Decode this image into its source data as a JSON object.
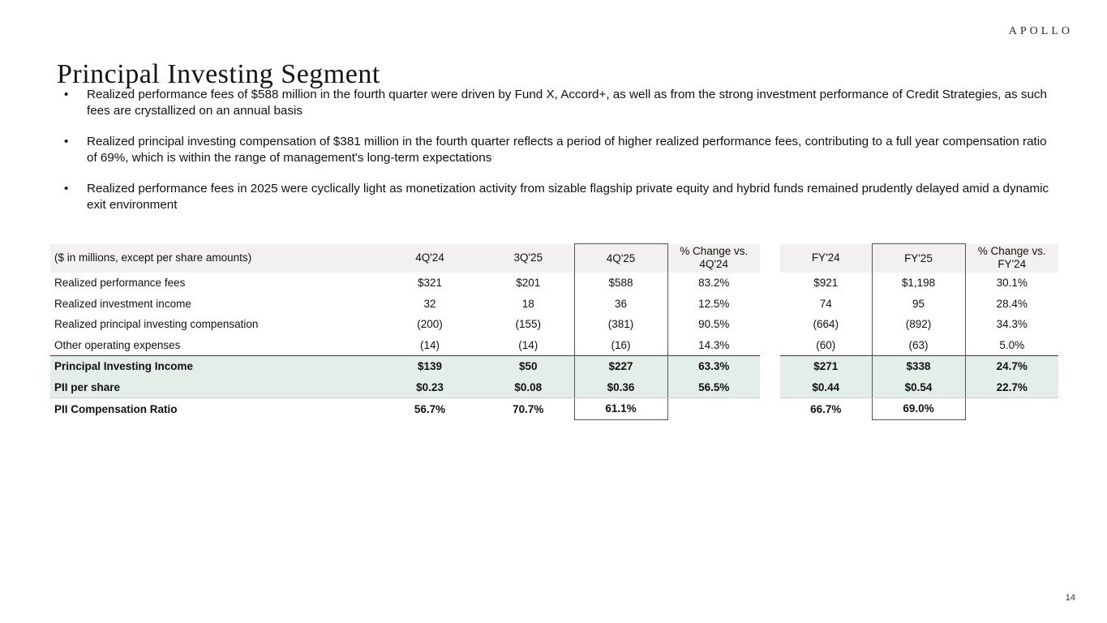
{
  "brand": {
    "logo": "APOLLO"
  },
  "page": {
    "title": "Principal Investing Segment",
    "page_number": "14"
  },
  "bullets": [
    "Realized performance fees of $588 million in the fourth quarter were driven by Fund X, Accord+, as well as from the strong investment performance of Credit Strategies, as such fees are crystallized on an annual basis",
    "Realized principal investing compensation of $381 million in the fourth quarter reflects a period of higher realized performance fees, contributing to a full year compensation ratio of 69%, which is within the range of management's long-term expectations",
    "Realized performance fees in 2025 were cyclically light as monetization activity from sizable flagship private equity and hybrid funds remained prudently delayed amid a dynamic exit environment"
  ],
  "table": {
    "unit_label": "($ in millions, except per share amounts)",
    "columns": [
      "4Q'24",
      "3Q'25",
      "4Q'25",
      "% Change vs. 4Q'24",
      "FY'24",
      "FY'25",
      "% Change vs. FY'24"
    ],
    "boxed_columns": [
      2,
      5
    ],
    "gap_after_column": 3,
    "rows": [
      {
        "label": "Realized performance fees",
        "style": "normal",
        "values": [
          "$321",
          "$201",
          "$588",
          "83.2%",
          "$921",
          "$1,198",
          "30.1%"
        ]
      },
      {
        "label": "Realized investment income",
        "style": "normal",
        "values": [
          "32",
          "18",
          "36",
          "12.5%",
          "74",
          "95",
          "28.4%"
        ]
      },
      {
        "label": "Realized principal investing compensation",
        "style": "normal",
        "values": [
          "(200)",
          "(155)",
          "(381)",
          "90.5%",
          "(664)",
          "(892)",
          "34.3%"
        ]
      },
      {
        "label": "Other operating expenses",
        "style": "normal",
        "values": [
          "(14)",
          "(14)",
          "(16)",
          "14.3%",
          "(60)",
          "(63)",
          "5.0%"
        ]
      },
      {
        "label": "Principal Investing Income",
        "style": "total",
        "values": [
          "$139",
          "$50",
          "$227",
          "63.3%",
          "$271",
          "$338",
          "24.7%"
        ]
      },
      {
        "label": "PII per share",
        "style": "total",
        "values": [
          "$0.23",
          "$0.08",
          "$0.36",
          "56.5%",
          "$0.44",
          "$0.54",
          "22.7%"
        ]
      },
      {
        "label": "PII Compensation Ratio",
        "style": "ratio",
        "values": [
          "56.7%",
          "70.7%",
          "61.1%",
          "",
          "66.7%",
          "69.0%",
          ""
        ]
      }
    ]
  },
  "colors": {
    "header_bg": "#f2f1ef",
    "highlight_bg": "#e3eee9",
    "box_border": "#555555",
    "total_rule": "#3d3d3d"
  }
}
